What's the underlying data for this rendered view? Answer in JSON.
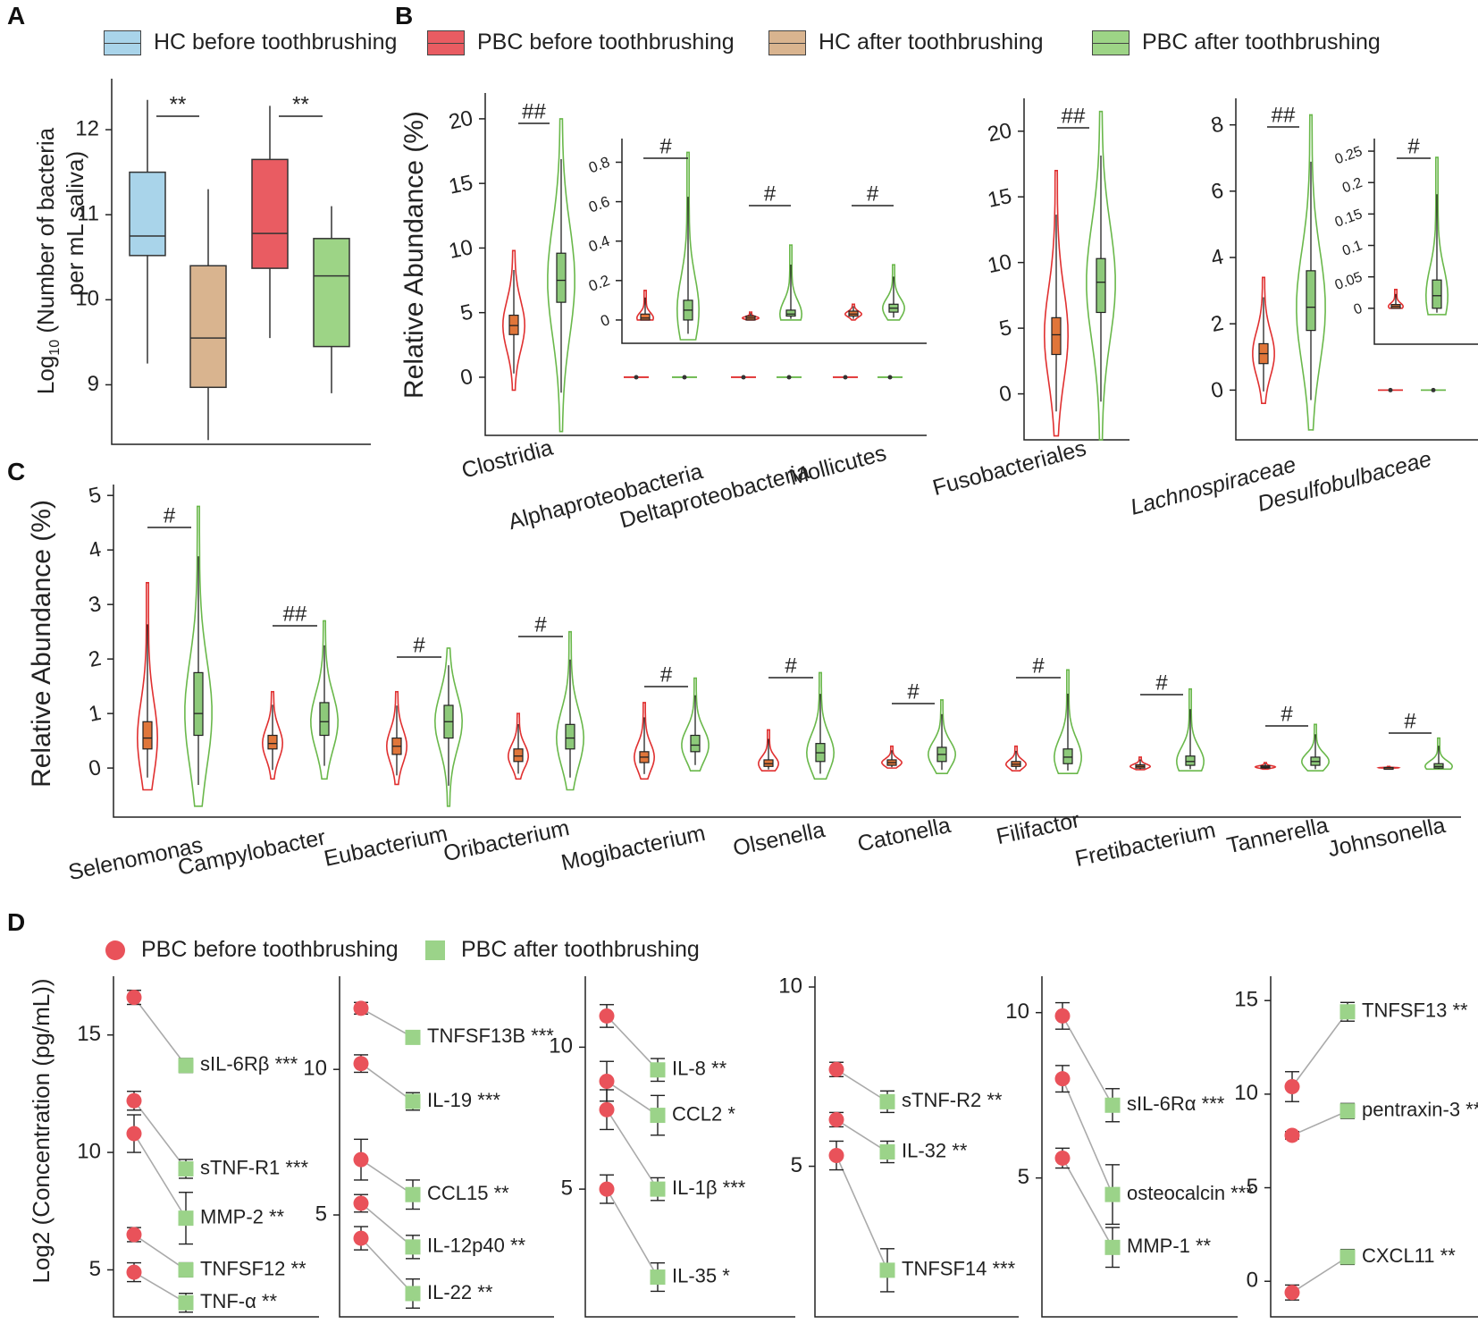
{
  "panels": {
    "A": "A",
    "B": "B",
    "C": "C",
    "D": "D"
  },
  "legend_top": {
    "hc_before": "HC before toothbrushing",
    "pbc_before": "PBC before toothbrushing",
    "hc_after": "HC after toothbrushing",
    "pbc_after": "PBC after toothbrushing"
  },
  "legend_d": {
    "pbc_before": "PBC before toothbrushing",
    "pbc_after": "PBC after toothbrushing"
  },
  "colors": {
    "hc_before": "#a9d4ea",
    "pbc_before": "#e95c62",
    "hc_after": "#d9b48f",
    "pbc_after": "#9dd486",
    "violin_red": "#e03030",
    "violin_green": "#6ab84b",
    "box_orange": "#e0763a",
    "box_green": "#8dc97a",
    "d_red": "#e9525a",
    "d_green": "#9bd389"
  },
  "chart_data": [
    {
      "id": "A",
      "type": "box",
      "ylabel": "Log10 (Number of bacteria per mL saliva)",
      "ylabel_line1": "Log",
      "ylabel_sub": "10",
      "ylabel_rest": " (Number of bacteria",
      "ylabel_line2": "per mL saliva)",
      "ylim": [
        8.3,
        12.6
      ],
      "yticks": [
        9,
        10,
        11,
        12
      ],
      "groups": [
        {
          "name": "HC before toothbrushing",
          "color": "hc_before",
          "min": 9.25,
          "q1": 10.52,
          "median": 10.75,
          "q3": 11.5,
          "max": 12.35
        },
        {
          "name": "HC after toothbrushing",
          "color": "hc_after",
          "min": 8.35,
          "q1": 8.97,
          "median": 9.55,
          "q3": 10.4,
          "max": 11.3
        },
        {
          "name": "PBC before toothbrushing",
          "color": "pbc_before",
          "min": 9.55,
          "q1": 10.37,
          "median": 10.78,
          "q3": 11.65,
          "max": 12.28
        },
        {
          "name": "PBC after toothbrushing",
          "color": "pbc_after",
          "min": 8.9,
          "q1": 9.45,
          "median": 10.28,
          "q3": 10.72,
          "max": 11.1
        }
      ],
      "significance": [
        {
          "between": [
            0,
            1
          ],
          "label": "**"
        },
        {
          "between": [
            2,
            3
          ],
          "label": "**"
        }
      ]
    },
    {
      "id": "B1",
      "type": "violin",
      "ylabel": "Relative Abundance (%)",
      "ylim": [
        -4.5,
        22
      ],
      "yticks": [
        0,
        5,
        10,
        15,
        20
      ],
      "categories": [
        "Clostridia",
        "Alphaproteobacteria",
        "Deltaproteobacteria",
        "Mollicutes"
      ],
      "series": [
        {
          "name": "PBC before toothbrushing",
          "values": [
            {
              "median": 4.0,
              "q1": 3.3,
              "q3": 4.8,
              "min": -1.0,
              "max": 9.8
            },
            {
              "median": 0.01,
              "q1": 0.0,
              "q3": 0.03,
              "min": 0,
              "max": 0.15
            },
            {
              "median": 0.01,
              "q1": 0.0,
              "q3": 0.02,
              "min": 0,
              "max": 0.04
            },
            {
              "median": 0.03,
              "q1": 0.02,
              "q3": 0.045,
              "min": 0,
              "max": 0.08
            }
          ]
        },
        {
          "name": "PBC after toothbrushing",
          "values": [
            {
              "median": 7.5,
              "q1": 5.8,
              "q3": 9.6,
              "min": -4.2,
              "max": 20.0
            },
            {
              "median": 0.05,
              "q1": 0.0,
              "q3": 0.1,
              "min": -0.1,
              "max": 0.85
            },
            {
              "median": 0.03,
              "q1": 0.02,
              "q3": 0.05,
              "min": 0,
              "max": 0.38
            },
            {
              "median": 0.06,
              "q1": 0.04,
              "q3": 0.08,
              "min": 0,
              "max": 0.28
            }
          ]
        }
      ],
      "significance": [
        "##",
        "#",
        "#",
        "#"
      ],
      "inset": {
        "yticks": [
          0,
          0.2,
          0.4,
          0.6,
          0.8
        ],
        "yticklabels": [
          "0",
          "0.2",
          "0.4",
          "0.6",
          "0.8"
        ],
        "ylim": [
          -0.1,
          0.92
        ]
      }
    },
    {
      "id": "B2",
      "type": "violin",
      "ylim": [
        -3.5,
        22.5
      ],
      "yticks": [
        0,
        5,
        10,
        15,
        20
      ],
      "categories": [
        "Fusobacteriales"
      ],
      "series": [
        {
          "name": "PBC before toothbrushing",
          "values": [
            {
              "median": 4.5,
              "q1": 3.0,
              "q3": 5.8,
              "min": -3.2,
              "max": 17.0
            }
          ]
        },
        {
          "name": "PBC after toothbrushing",
          "values": [
            {
              "median": 8.5,
              "q1": 6.2,
              "q3": 10.3,
              "min": -3.5,
              "max": 21.5
            }
          ]
        }
      ],
      "significance": [
        "##"
      ]
    },
    {
      "id": "B3",
      "type": "violin",
      "ylim": [
        -1.5,
        8.8
      ],
      "yticks": [
        0,
        2,
        4,
        6,
        8
      ],
      "categories": [
        "Lachnospiraceae",
        "Desulfobulbaceae"
      ],
      "series": [
        {
          "name": "PBC before toothbrushing",
          "values": [
            {
              "median": 1.1,
              "q1": 0.8,
              "q3": 1.4,
              "min": -0.4,
              "max": 3.4
            },
            {
              "median": 0.003,
              "q1": 0.0,
              "q3": 0.006,
              "min": 0,
              "max": 0.03
            }
          ]
        },
        {
          "name": "PBC after toothbrushing",
          "values": [
            {
              "median": 2.5,
              "q1": 1.8,
              "q3": 3.6,
              "min": -1.2,
              "max": 8.3
            },
            {
              "median": 0.02,
              "q1": 0.0,
              "q3": 0.045,
              "min": -0.01,
              "max": 0.24
            }
          ]
        }
      ],
      "significance": [
        "##",
        "#"
      ],
      "inset": {
        "yticks": [
          0,
          0.05,
          0.1,
          0.15,
          0.2,
          0.25
        ],
        "yticklabels": [
          "0",
          "0.05",
          "0.1",
          "0.15",
          "0.2",
          "0.25"
        ],
        "ylim": [
          -0.05,
          0.27
        ]
      }
    },
    {
      "id": "C",
      "type": "violin",
      "ylabel": "Relative Abundance (%)",
      "ylim": [
        -0.9,
        5.2
      ],
      "yticks": [
        0,
        1,
        2,
        3,
        4,
        5
      ],
      "categories": [
        "Selenomonas",
        "Campylobacter",
        "Eubacterium",
        "Oribacterium",
        "Mogibacterium",
        "Olsenella",
        "Catonella",
        "Filifactor",
        "Fretibacterium",
        "Tannerella",
        "Johnsonella"
      ],
      "series": [
        {
          "name": "PBC before toothbrushing",
          "values": [
            {
              "median": 0.55,
              "q1": 0.35,
              "q3": 0.85,
              "min": -0.4,
              "max": 3.4
            },
            {
              "median": 0.45,
              "q1": 0.35,
              "q3": 0.6,
              "min": -0.2,
              "max": 1.4
            },
            {
              "median": 0.4,
              "q1": 0.25,
              "q3": 0.55,
              "min": -0.3,
              "max": 1.4
            },
            {
              "median": 0.22,
              "q1": 0.12,
              "q3": 0.35,
              "min": -0.2,
              "max": 1.0
            },
            {
              "median": 0.2,
              "q1": 0.1,
              "q3": 0.3,
              "min": -0.2,
              "max": 1.2
            },
            {
              "median": 0.08,
              "q1": 0.03,
              "q3": 0.15,
              "min": -0.05,
              "max": 0.7
            },
            {
              "median": 0.1,
              "q1": 0.05,
              "q3": 0.15,
              "min": 0,
              "max": 0.4
            },
            {
              "median": 0.07,
              "q1": 0.03,
              "q3": 0.12,
              "min": -0.05,
              "max": 0.4
            },
            {
              "median": 0.03,
              "q1": 0.0,
              "q3": 0.06,
              "min": -0.03,
              "max": 0.2
            },
            {
              "median": 0.02,
              "q1": 0.0,
              "q3": 0.04,
              "min": -0.02,
              "max": 0.1
            },
            {
              "median": 0.005,
              "q1": 0.0,
              "q3": 0.01,
              "min": 0,
              "max": 0.03
            }
          ]
        },
        {
          "name": "PBC after toothbrushing",
          "values": [
            {
              "median": 1.0,
              "q1": 0.6,
              "q3": 1.75,
              "min": -0.7,
              "max": 4.8
            },
            {
              "median": 0.85,
              "q1": 0.6,
              "q3": 1.2,
              "min": -0.2,
              "max": 2.7
            },
            {
              "median": 0.85,
              "q1": 0.55,
              "q3": 1.15,
              "min": -0.7,
              "max": 2.2
            },
            {
              "median": 0.55,
              "q1": 0.35,
              "q3": 0.8,
              "min": -0.4,
              "max": 2.5
            },
            {
              "median": 0.42,
              "q1": 0.3,
              "q3": 0.6,
              "min": -0.05,
              "max": 1.65
            },
            {
              "median": 0.28,
              "q1": 0.12,
              "q3": 0.45,
              "min": -0.2,
              "max": 1.75
            },
            {
              "median": 0.25,
              "q1": 0.12,
              "q3": 0.38,
              "min": -0.1,
              "max": 1.25
            },
            {
              "median": 0.2,
              "q1": 0.08,
              "q3": 0.35,
              "min": -0.1,
              "max": 1.8
            },
            {
              "median": 0.12,
              "q1": 0.05,
              "q3": 0.22,
              "min": -0.05,
              "max": 1.45
            },
            {
              "median": 0.12,
              "q1": 0.05,
              "q3": 0.2,
              "min": -0.05,
              "max": 0.8
            },
            {
              "median": 0.03,
              "q1": 0.0,
              "q3": 0.08,
              "min": -0.02,
              "max": 0.55
            }
          ]
        }
      ],
      "significance": [
        "#",
        "##",
        "#",
        "#",
        "#",
        "#",
        "#",
        "#",
        "#",
        "#",
        "#"
      ]
    },
    {
      "id": "D1",
      "type": "paired-dot",
      "ylabel": "Log2 (Concentration (pg/mL))",
      "ylim": [
        3.0,
        17.5
      ],
      "yticks": [
        5,
        10,
        15
      ],
      "items": [
        {
          "label": "sIL-6Rβ ***",
          "before": 16.6,
          "before_err": 0.3,
          "after": 13.7,
          "after_err": 0.3
        },
        {
          "label": "sTNF-R1 ***",
          "before": 12.2,
          "before_err": 0.4,
          "after": 9.3,
          "after_err": 0.4
        },
        {
          "label": "MMP-2 **",
          "before": 10.8,
          "before_err": 0.8,
          "after": 7.2,
          "after_err": 1.1
        },
        {
          "label": "TNFSF12 **",
          "before": 6.5,
          "before_err": 0.3,
          "after": 5.0,
          "after_err": 0.3
        },
        {
          "label": "TNF-α **",
          "before": 4.9,
          "before_err": 0.4,
          "after": 3.6,
          "after_err": 0.4
        }
      ]
    },
    {
      "id": "D2",
      "type": "paired-dot",
      "ylim": [
        1.5,
        13.2
      ],
      "yticks": [
        5,
        10
      ],
      "items": [
        {
          "label": "TNFSF13B ***",
          "before": 12.1,
          "before_err": 0.2,
          "after": 11.1,
          "after_err": 0.2
        },
        {
          "label": "IL-19 ***",
          "before": 10.2,
          "before_err": 0.3,
          "after": 8.9,
          "after_err": 0.3
        },
        {
          "label": "CCL15 **",
          "before": 6.9,
          "before_err": 0.7,
          "after": 5.7,
          "after_err": 0.5
        },
        {
          "label": "IL-12p40 **",
          "before": 5.4,
          "before_err": 0.3,
          "after": 3.9,
          "after_err": 0.4
        },
        {
          "label": "IL-22 **",
          "before": 4.2,
          "before_err": 0.4,
          "after": 2.3,
          "after_err": 0.5
        }
      ]
    },
    {
      "id": "D3",
      "type": "paired-dot",
      "ylim": [
        0.5,
        12.5
      ],
      "yticks": [
        5,
        10
      ],
      "items": [
        {
          "label": "IL-8 **",
          "before": 11.1,
          "before_err": 0.4,
          "after": 9.2,
          "after_err": 0.4
        },
        {
          "label": "CCL2 *",
          "before": 8.8,
          "before_err": 0.7,
          "after": 7.6,
          "after_err": 0.7
        },
        {
          "label": "IL-1β ***",
          "before": 7.8,
          "before_err": 0.7,
          "after": 5.0,
          "after_err": 0.4
        },
        {
          "label": "IL-35 *",
          "before": 5.0,
          "before_err": 0.5,
          "after": 1.9,
          "after_err": 0.5
        }
      ]
    },
    {
      "id": "D4",
      "type": "paired-dot",
      "ylim": [
        0.8,
        10.3
      ],
      "yticks": [
        5,
        10
      ],
      "items": [
        {
          "label": "sTNF-R2 **",
          "before": 7.7,
          "before_err": 0.2,
          "after": 6.8,
          "after_err": 0.3
        },
        {
          "label": "IL-32 **",
          "before": 6.3,
          "before_err": 0.2,
          "after": 5.4,
          "after_err": 0.3
        },
        {
          "label": "TNFSF14 ***",
          "before": 5.3,
          "before_err": 0.4,
          "after": 2.1,
          "after_err": 0.6
        }
      ]
    },
    {
      "id": "D5",
      "type": "paired-dot",
      "ylim": [
        0.8,
        11.1
      ],
      "yticks": [
        5,
        10
      ],
      "items": [
        {
          "label": "sIL-6Rα ***",
          "before": 9.9,
          "before_err": 0.4,
          "after": 7.2,
          "after_err": 0.5
        },
        {
          "label": "osteocalcin ***",
          "before": 8.0,
          "before_err": 0.4,
          "after": 4.5,
          "after_err": 0.9
        },
        {
          "label": "MMP-1 **",
          "before": 5.6,
          "before_err": 0.3,
          "after": 2.9,
          "after_err": 0.6
        }
      ]
    },
    {
      "id": "D6",
      "type": "paired-dot",
      "ylim": [
        -1.9,
        16.3
      ],
      "yticks": [
        0,
        5,
        10,
        15
      ],
      "items": [
        {
          "label": "TNFSF13 **",
          "before": 10.4,
          "before_err": 0.8,
          "after": 14.4,
          "after_err": 0.5
        },
        {
          "label": "pentraxin-3 **",
          "before": 7.8,
          "before_err": 0.2,
          "after": 9.1,
          "after_err": 0.4
        },
        {
          "label": "CXCL11 **",
          "before": -0.6,
          "before_err": 0.4,
          "after": 1.3,
          "after_err": 0.4
        }
      ]
    }
  ]
}
